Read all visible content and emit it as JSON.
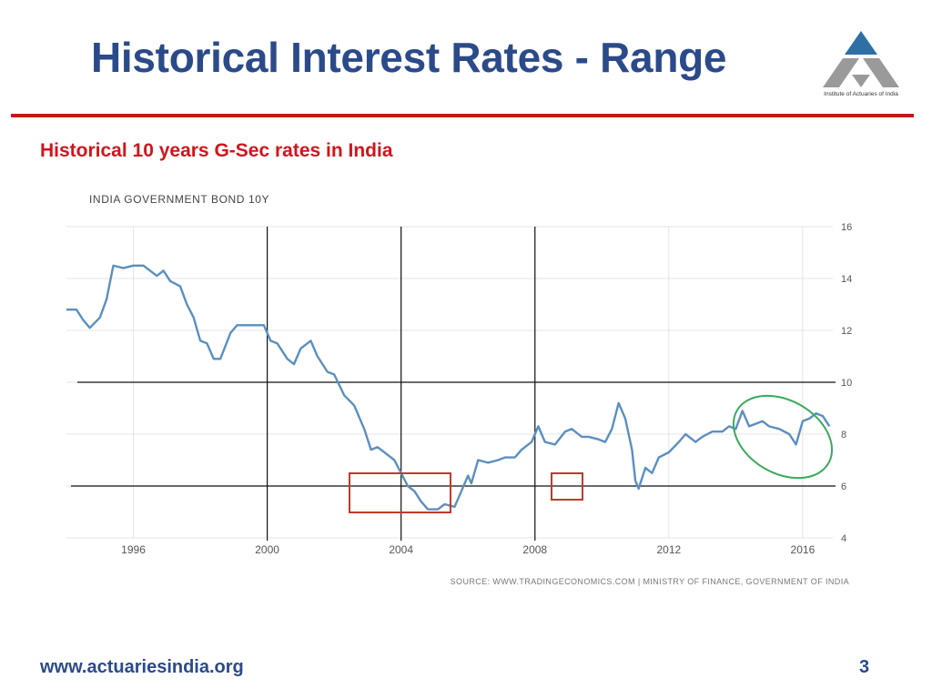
{
  "slide": {
    "title": "Historical Interest Rates - Range",
    "subtitle": "Historical 10 years G-Sec rates in India",
    "logo_caption": "Institute of Actuaries of India",
    "footer_url": "www.actuariesindia.org",
    "page_number": "3"
  },
  "colors": {
    "title": "#2b4a8a",
    "subtitle": "#d2141c",
    "rule": "#c0191d",
    "series_line": "#5b8fc0",
    "box": "#c0392b",
    "ellipse": "#3aaa5c",
    "logo_top": "#2f6fa6"
  },
  "chart_data": {
    "type": "line",
    "title": "INDIA GOVERNMENT BOND 10Y",
    "source": "SOURCE: WWW.TRADINGECONOMICS.COM | MINISTRY OF FINANCE, GOVERNMENT OF INDIA",
    "x_ticks": [
      "1996",
      "2000",
      "2004",
      "2008",
      "2012",
      "2016"
    ],
    "y_ticks": [
      "4",
      "6",
      "8",
      "10",
      "12",
      "14",
      "16"
    ],
    "xlim": [
      1994.0,
      2016.9
    ],
    "ylim": [
      4,
      16
    ],
    "grid": true,
    "series": [
      {
        "values": [
          [
            1994.0,
            12.8
          ],
          [
            1994.3,
            12.8
          ],
          [
            1994.5,
            12.4
          ],
          [
            1994.7,
            12.1
          ],
          [
            1995.0,
            12.5
          ],
          [
            1995.2,
            13.2
          ],
          [
            1995.4,
            14.5
          ],
          [
            1995.7,
            14.4
          ],
          [
            1996.0,
            14.5
          ],
          [
            1996.3,
            14.5
          ],
          [
            1996.5,
            14.3
          ],
          [
            1996.7,
            14.1
          ],
          [
            1996.9,
            14.3
          ],
          [
            1997.1,
            13.9
          ],
          [
            1997.4,
            13.7
          ],
          [
            1997.6,
            13.0
          ],
          [
            1997.8,
            12.5
          ],
          [
            1998.0,
            11.6
          ],
          [
            1998.2,
            11.5
          ],
          [
            1998.4,
            10.9
          ],
          [
            1998.6,
            10.9
          ],
          [
            1998.9,
            11.9
          ],
          [
            1999.1,
            12.2
          ],
          [
            1999.4,
            12.2
          ],
          [
            1999.6,
            12.2
          ],
          [
            1999.9,
            12.2
          ],
          [
            2000.1,
            11.6
          ],
          [
            2000.3,
            11.5
          ],
          [
            2000.6,
            10.9
          ],
          [
            2000.8,
            10.7
          ],
          [
            2001.0,
            11.3
          ],
          [
            2001.3,
            11.6
          ],
          [
            2001.5,
            11.0
          ],
          [
            2001.8,
            10.4
          ],
          [
            2002.0,
            10.3
          ],
          [
            2002.3,
            9.5
          ],
          [
            2002.6,
            9.1
          ],
          [
            2002.9,
            8.2
          ],
          [
            2003.1,
            7.4
          ],
          [
            2003.3,
            7.5
          ],
          [
            2003.6,
            7.2
          ],
          [
            2003.8,
            7.0
          ],
          [
            2004.0,
            6.5
          ],
          [
            2004.2,
            6.0
          ],
          [
            2004.4,
            5.8
          ],
          [
            2004.6,
            5.4
          ],
          [
            2004.8,
            5.1
          ],
          [
            2005.1,
            5.1
          ],
          [
            2005.3,
            5.3
          ],
          [
            2005.6,
            5.2
          ],
          [
            2005.8,
            5.8
          ],
          [
            2006.0,
            6.4
          ],
          [
            2006.1,
            6.1
          ],
          [
            2006.3,
            7.0
          ],
          [
            2006.6,
            6.9
          ],
          [
            2006.9,
            7.0
          ],
          [
            2007.1,
            7.1
          ],
          [
            2007.4,
            7.1
          ],
          [
            2007.6,
            7.4
          ],
          [
            2007.9,
            7.7
          ],
          [
            2008.1,
            8.3
          ],
          [
            2008.3,
            7.7
          ],
          [
            2008.6,
            7.6
          ],
          [
            2008.9,
            8.1
          ],
          [
            2009.1,
            8.2
          ],
          [
            2009.4,
            7.9
          ],
          [
            2009.6,
            7.9
          ],
          [
            2009.9,
            7.8
          ],
          [
            2010.1,
            7.7
          ],
          [
            2010.3,
            8.2
          ],
          [
            2010.5,
            9.2
          ],
          [
            2010.7,
            8.6
          ],
          [
            2010.9,
            7.4
          ],
          [
            2011.0,
            6.2
          ],
          [
            2011.1,
            5.9
          ],
          [
            2011.3,
            6.7
          ],
          [
            2011.5,
            6.5
          ],
          [
            2011.7,
            7.1
          ],
          [
            2012.0,
            7.3
          ],
          [
            2012.3,
            7.7
          ],
          [
            2012.5,
            8.0
          ],
          [
            2012.8,
            7.7
          ],
          [
            2013.0,
            7.9
          ],
          [
            2013.3,
            8.1
          ],
          [
            2013.6,
            8.1
          ],
          [
            2013.8,
            8.3
          ],
          [
            2014.0,
            8.2
          ],
          [
            2014.2,
            8.9
          ],
          [
            2014.4,
            8.3
          ],
          [
            2014.6,
            8.4
          ],
          [
            2014.8,
            8.5
          ],
          [
            2015.0,
            8.3
          ],
          [
            2015.3,
            8.2
          ],
          [
            2015.6,
            8.0
          ],
          [
            2015.8,
            7.6
          ],
          [
            2016.0,
            8.5
          ],
          [
            2016.2,
            8.6
          ],
          [
            2016.4,
            8.8
          ],
          [
            2016.6,
            8.7
          ],
          [
            2016.8,
            8.3
          ]
        ]
      }
    ],
    "reference_lines_y": [
      10,
      6
    ],
    "reference_lines_x": [
      2000,
      2004,
      2008
    ]
  }
}
